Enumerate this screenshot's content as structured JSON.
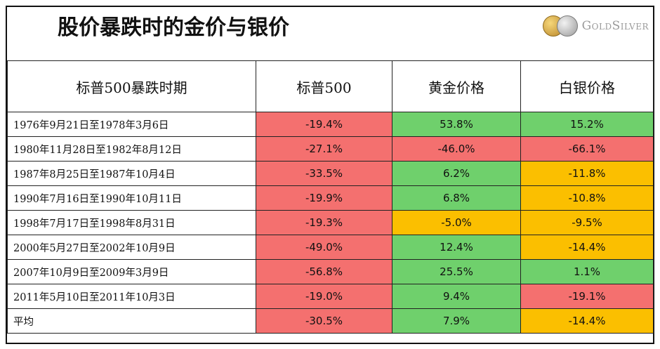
{
  "title": "股价暴跌时的金价与银价",
  "logo": {
    "text": "GoldSilver",
    "coin1_icon": "gold-coin-icon",
    "coin2_icon": "silver-coin-icon"
  },
  "colors": {
    "negative": "#f4706f",
    "positive": "#6fd06c",
    "mild": "#fbbf00"
  },
  "chart_data": {
    "type": "table",
    "columns": [
      "标普500暴跌时期",
      "标普500",
      "黄金价格",
      "白银价格"
    ],
    "rows": [
      {
        "period": "1976年9月21日至1978年3月6日",
        "sp500": "-19.4%",
        "gold": "53.8%",
        "silver": "15.2%",
        "sp500_color": "red",
        "gold_color": "green",
        "silver_color": "green"
      },
      {
        "period": "1980年11月28日至1982年8月12日",
        "sp500": "-27.1%",
        "gold": "-46.0%",
        "silver": "-66.1%",
        "sp500_color": "red",
        "gold_color": "red",
        "silver_color": "red"
      },
      {
        "period": "1987年8月25日至1987年10月4日",
        "sp500": "-33.5%",
        "gold": "6.2%",
        "silver": "-11.8%",
        "sp500_color": "red",
        "gold_color": "green",
        "silver_color": "orange"
      },
      {
        "period": "1990年7月16日至1990年10月11日",
        "sp500": "-19.9%",
        "gold": "6.8%",
        "silver": "-10.8%",
        "sp500_color": "red",
        "gold_color": "green",
        "silver_color": "orange"
      },
      {
        "period": "1998年7月17日至1998年8月31日",
        "sp500": "-19.3%",
        "gold": "-5.0%",
        "silver": "-9.5%",
        "sp500_color": "red",
        "gold_color": "orange",
        "silver_color": "orange"
      },
      {
        "period": "2000年5月27日至2002年10月9日",
        "sp500": "-49.0%",
        "gold": "12.4%",
        "silver": "-14.4%",
        "sp500_color": "red",
        "gold_color": "green",
        "silver_color": "orange"
      },
      {
        "period": "2007年10月9日至2009年3月9日",
        "sp500": "-56.8%",
        "gold": "25.5%",
        "silver": "1.1%",
        "sp500_color": "red",
        "gold_color": "green",
        "silver_color": "green"
      },
      {
        "period": "2011年5月10日至2011年10月3日",
        "sp500": "-19.0%",
        "gold": "9.4%",
        "silver": "-19.1%",
        "sp500_color": "red",
        "gold_color": "green",
        "silver_color": "red"
      },
      {
        "period": "平均",
        "sp500": "-30.5%",
        "gold": "7.9%",
        "silver": "-14.4%",
        "sp500_color": "red",
        "gold_color": "green",
        "silver_color": "orange"
      }
    ]
  }
}
